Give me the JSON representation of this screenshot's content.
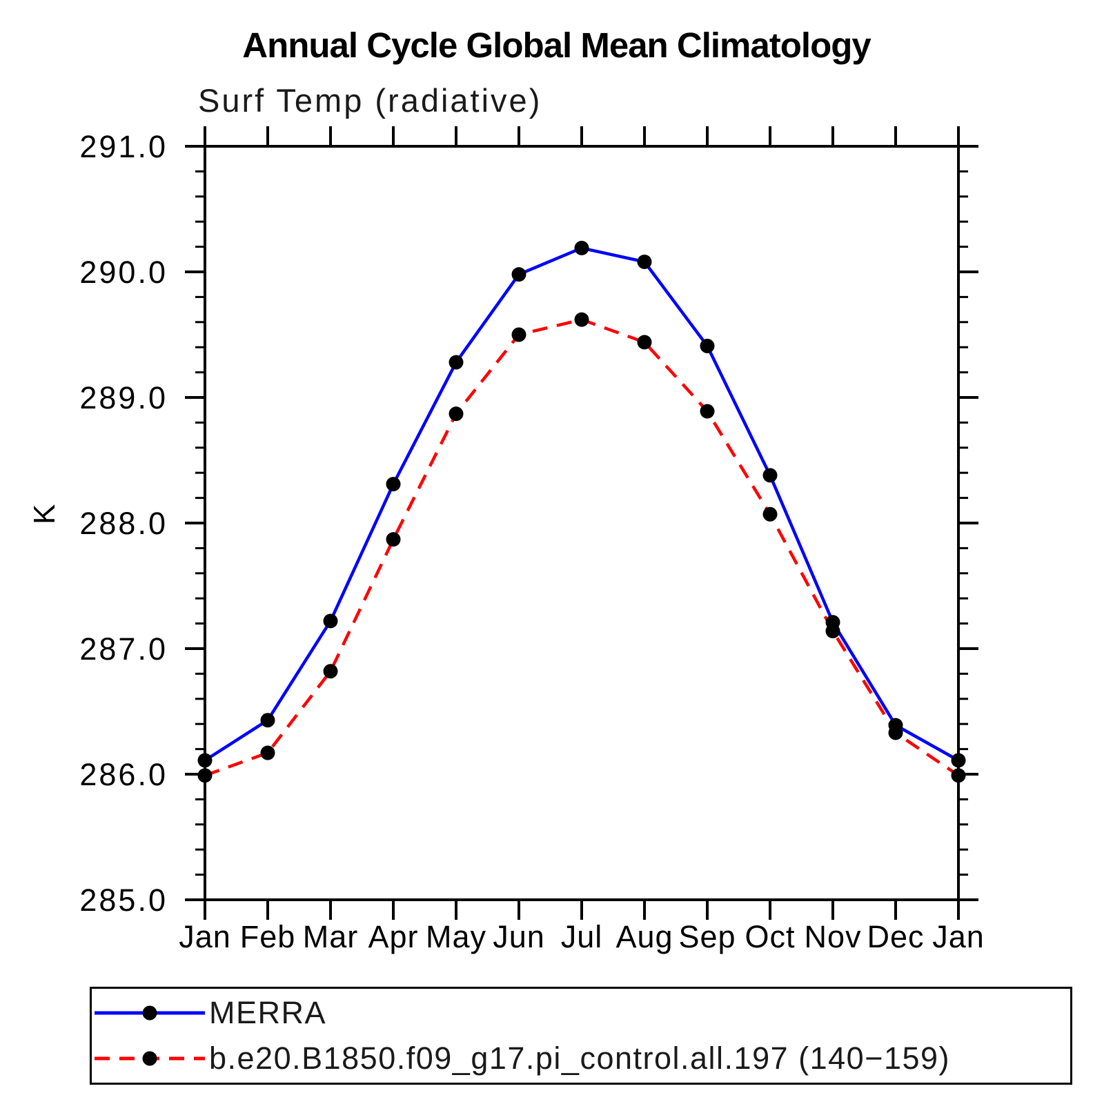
{
  "page": {
    "background": "#FFFFFF",
    "text_color": "#000000"
  },
  "chart_data": {
    "type": "line",
    "title": "Annual Cycle Global Mean Climatology",
    "subtitle": "Surf Temp (radiative)",
    "ylabel": "K",
    "xlabel": "",
    "categories": [
      "Jan",
      "Feb",
      "Mar",
      "Apr",
      "May",
      "Jun",
      "Jul",
      "Aug",
      "Sep",
      "Oct",
      "Nov",
      "Dec",
      "Jan"
    ],
    "ylim": [
      285.0,
      291.0
    ],
    "ytick_major_interval": 1.0,
    "ytick_minor_interval": 0.2,
    "ytick_labels": [
      "285.0",
      "286.0",
      "287.0",
      "288.0",
      "289.0",
      "290.0",
      "291.0"
    ],
    "grid": false,
    "ticks_direction": "out",
    "legend_position": "bottom",
    "marker": "filled-circle",
    "marker_color": "#000000",
    "series": [
      {
        "name": "MERRA",
        "color": "#0000FF",
        "line_style": "solid",
        "values": [
          286.11,
          286.43,
          287.22,
          288.31,
          289.28,
          289.98,
          290.19,
          290.08,
          289.41,
          288.38,
          287.21,
          286.39,
          286.11
        ]
      },
      {
        "name": "b.e20.B1850.f09_g17.pi_control.all.197 (140−159)",
        "color": "#FF0000",
        "line_style": "dashed",
        "values": [
          285.99,
          286.17,
          286.82,
          287.87,
          288.87,
          289.5,
          289.62,
          289.44,
          288.89,
          288.07,
          287.14,
          286.33,
          285.99
        ]
      }
    ]
  }
}
